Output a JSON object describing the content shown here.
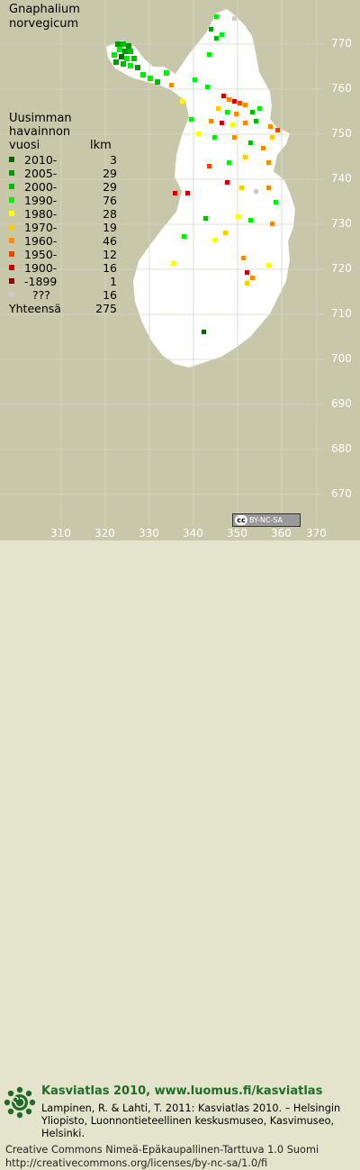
{
  "map": {
    "title_line1": "Gnaphalium",
    "title_line2": "norvegicum",
    "legend_heading_line1": "Uusimman",
    "legend_heading_line2": "havainnon",
    "legend_heading_line3": "vuosi",
    "legend_count_heading": "lkm",
    "legend": [
      {
        "label": "2010-",
        "count": "3",
        "color": "#006600"
      },
      {
        "label": "2005-",
        "count": "29",
        "color": "#009900"
      },
      {
        "label": "2000-",
        "count": "29",
        "color": "#00bb00"
      },
      {
        "label": "1990-",
        "count": "76",
        "color": "#00ee00"
      },
      {
        "label": "1980-",
        "count": "28",
        "color": "#ffff00"
      },
      {
        "label": "1970-",
        "count": "19",
        "color": "#ffcc00"
      },
      {
        "label": "1960-",
        "count": "46",
        "color": "#ff8800"
      },
      {
        "label": "1950-",
        "count": "12",
        "color": "#ee4400"
      },
      {
        "label": "1900-",
        "count": "16",
        "color": "#cc0000"
      },
      {
        "label": "-1899",
        "count": "1",
        "color": "#880000"
      },
      {
        "label": "???",
        "count": "16",
        "color": "#cccccc"
      }
    ],
    "total_label": "Yhteensä",
    "total_count": "275",
    "grid_y_labels": [
      "770",
      "760",
      "750",
      "740",
      "730",
      "720",
      "710",
      "700",
      "690",
      "680",
      "670"
    ],
    "grid_x_labels": [
      "310",
      "320",
      "330",
      "340",
      "350",
      "360",
      "370"
    ],
    "land_color": "#ffffff",
    "sea_color": "#c8c7a9",
    "license_badge": "BY-NC-SA"
  },
  "footer": {
    "site_title": "Kasviatlas 2010, www.luomus.fi/kasviatlas",
    "citation": "Lampinen, R. & Lahti, T. 2011: Kasviatlas 2010. – Helsingin Yliopisto, Luonnontieteellinen keskusmuseo, Kasvimuseo, Helsinki.",
    "license_line1": "Creative Commons Nimeä-Epäkaupallinen-Tarttuva 1.0 Suomi",
    "license_line2": "http://creativecommons.org/licenses/by-nc-sa/1.0/fi",
    "brand_color": "#1f6b27"
  }
}
